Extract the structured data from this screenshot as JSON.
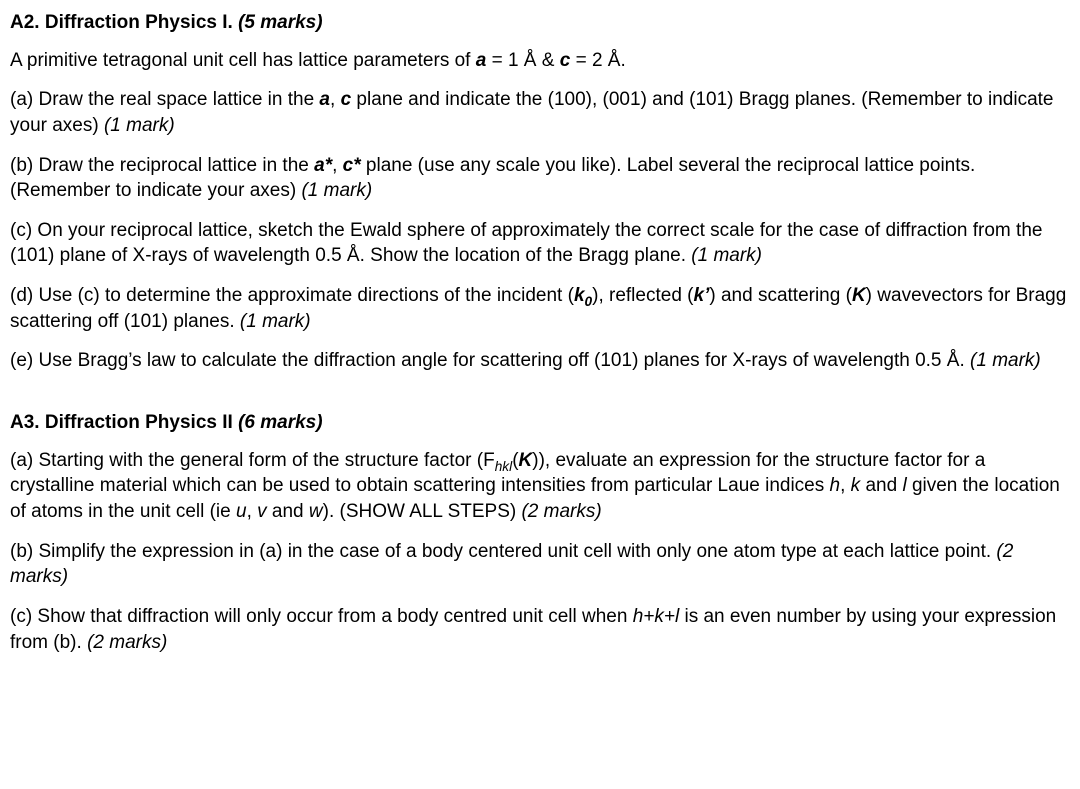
{
  "A2": {
    "heading_prefix": "A2. Diffraction Physics I. ",
    "heading_marks": "(5 marks)",
    "intro_pre": "A primitive tetragonal unit cell has lattice parameters of ",
    "intro_a": "a",
    "intro_mid1": " = 1 Å & ",
    "intro_c": "c",
    "intro_mid2": " = 2 Å.",
    "a_pre": "(a) Draw the real space lattice in the ",
    "a_a": "a",
    "a_sep": ", ",
    "a_c": "c",
    "a_post": " plane and indicate the (100), (001) and (101) Bragg planes. (Remember to indicate your axes) ",
    "a_marks": "(1 mark)",
    "b_pre": "(b) Draw the reciprocal lattice in the ",
    "b_a": "a*",
    "b_sep": ", ",
    "b_c": "c*",
    "b_mid": " plane (use any scale you like). Label several the reciprocal lattice points. (Remember to indicate your axes) ",
    "b_marks": "(1 mark)",
    "c_text": "(c) On your reciprocal lattice, sketch the Ewald sphere of approximately the correct scale for the case of diffraction from the (101) plane of X-rays of wavelength 0.5 Å. Show the location of the Bragg plane. ",
    "c_marks": "(1 mark)",
    "d_pre": "(d) Use (c) to determine the approximate directions of the incident (",
    "d_k0_k": "k",
    "d_k0_sub": "0",
    "d_mid1": "), reflected (",
    "d_kprime": "k’",
    "d_mid2": ") and scattering (",
    "d_K": "K",
    "d_post": ") wavevectors for Bragg scattering off (101) planes. ",
    "d_marks": "(1 mark)",
    "e_text": "(e) Use Bragg’s law to calculate the diffraction angle for scattering off (101) planes for X-rays of wavelength 0.5 Å. ",
    "e_marks": "(1 mark)"
  },
  "A3": {
    "heading_prefix": "A3. Diffraction Physics II ",
    "heading_marks": "(6 marks)",
    "a_pre": "(a) Starting with the general form of the structure factor (F",
    "a_sub": "hkl",
    "a_mid1": "(",
    "a_K": "K",
    "a_mid2": ")), evaluate an expression for the structure factor for a crystalline material which can be used to obtain scattering intensities from particular Laue indices ",
    "a_h": "h",
    "a_sep1": ", ",
    "a_k": "k",
    "a_and": " and ",
    "a_l": "l",
    "a_mid3": " given the location of atoms in the unit cell (ie ",
    "a_u": "u",
    "a_sep2": ", ",
    "a_v": "v",
    "a_and2": " and ",
    "a_w": "w",
    "a_post": "). (SHOW ALL STEPS) ",
    "a_marks": "(2 marks)",
    "b_text": "(b) Simplify the expression in (a) in the case of a body centered unit cell with only one atom type at each lattice point. ",
    "b_marks": "(2 marks)",
    "c_pre": "(c) Show that diffraction will only occur from a body centred unit cell when ",
    "c_hkl": "h+k+l",
    "c_post": " is an even number by using your expression from (b). ",
    "c_marks": "(2 marks)"
  }
}
